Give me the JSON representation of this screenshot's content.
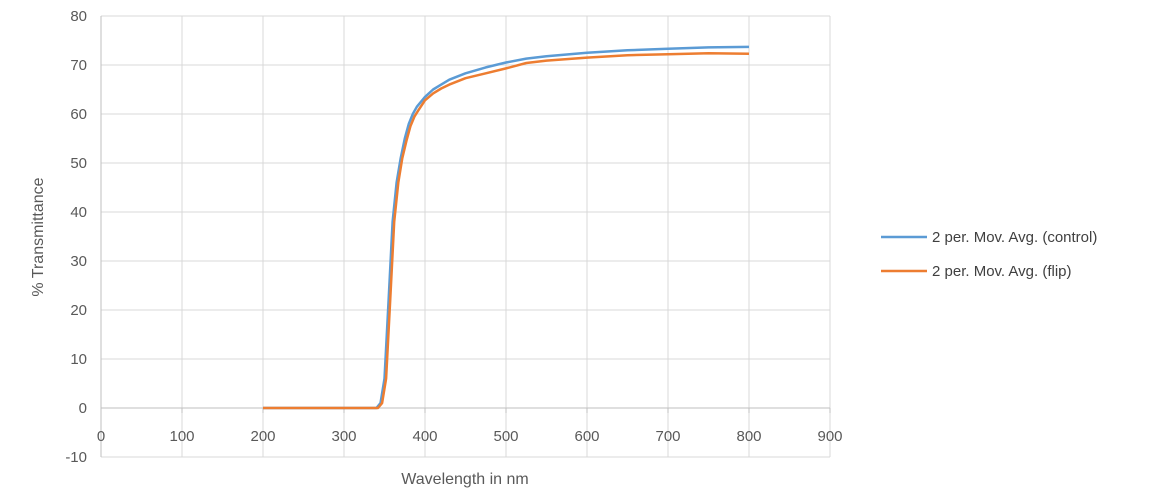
{
  "chart_data": {
    "type": "line",
    "title": "",
    "xlabel": "Wavelength in nm",
    "ylabel": "% Transmittance",
    "xlim": [
      0,
      900
    ],
    "ylim": [
      -10,
      80
    ],
    "x_ticks": [
      0,
      100,
      200,
      300,
      400,
      500,
      600,
      700,
      800,
      900
    ],
    "y_ticks": [
      -10,
      0,
      10,
      20,
      30,
      40,
      50,
      60,
      70,
      80
    ],
    "grid": true,
    "legend_position": "right",
    "colors": {
      "gridline": "#d9d9d9",
      "axis": "#bfbfbf"
    },
    "series": [
      {
        "name": "2 per. Mov. Avg. (control)",
        "color": "#5b9bd5",
        "points": [
          [
            200,
            0
          ],
          [
            300,
            0
          ],
          [
            340,
            0
          ],
          [
            345,
            1
          ],
          [
            350,
            6
          ],
          [
            355,
            22
          ],
          [
            360,
            38
          ],
          [
            365,
            46
          ],
          [
            370,
            51
          ],
          [
            375,
            55
          ],
          [
            380,
            58
          ],
          [
            385,
            60
          ],
          [
            390,
            61.5
          ],
          [
            400,
            63.5
          ],
          [
            410,
            65
          ],
          [
            420,
            66
          ],
          [
            430,
            67
          ],
          [
            450,
            68.3
          ],
          [
            475,
            69.5
          ],
          [
            500,
            70.5
          ],
          [
            525,
            71.3
          ],
          [
            550,
            71.8
          ],
          [
            600,
            72.5
          ],
          [
            650,
            73
          ],
          [
            700,
            73.3
          ],
          [
            750,
            73.6
          ],
          [
            800,
            73.7
          ]
        ]
      },
      {
        "name": "2 per. Mov. Avg. (flip)",
        "color": "#ed7d31",
        "points": [
          [
            200,
            0
          ],
          [
            300,
            0
          ],
          [
            342,
            0
          ],
          [
            347,
            1
          ],
          [
            352,
            6
          ],
          [
            357,
            22
          ],
          [
            362,
            38
          ],
          [
            367,
            46
          ],
          [
            372,
            51
          ],
          [
            377,
            54.5
          ],
          [
            382,
            57.5
          ],
          [
            387,
            59.5
          ],
          [
            392,
            60.8
          ],
          [
            400,
            62.8
          ],
          [
            410,
            64.2
          ],
          [
            420,
            65.2
          ],
          [
            430,
            66
          ],
          [
            450,
            67.3
          ],
          [
            475,
            68.3
          ],
          [
            500,
            69.3
          ],
          [
            525,
            70.4
          ],
          [
            550,
            70.9
          ],
          [
            600,
            71.5
          ],
          [
            650,
            72
          ],
          [
            700,
            72.2
          ],
          [
            750,
            72.4
          ],
          [
            800,
            72.3
          ]
        ]
      }
    ]
  }
}
